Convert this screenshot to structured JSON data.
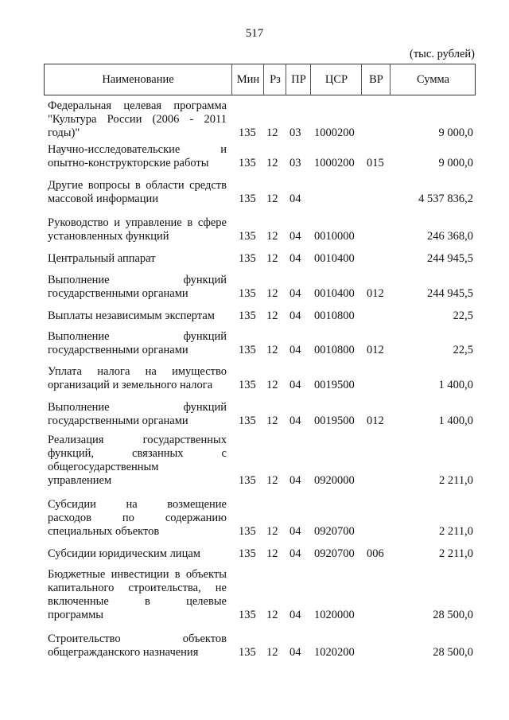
{
  "page_number": "517",
  "units": "(тыс. рублей)",
  "header": {
    "name": "Наименование",
    "min": "Мин",
    "rz": "Рз",
    "pr": "ПР",
    "csr": "ЦСР",
    "vr": "ВР",
    "sum": "Сумма"
  },
  "rows": [
    {
      "name_lines": [
        "Федеральная целевая программа",
        "\"Культура России (2006 - 2011",
        "годы)\""
      ],
      "min": "135",
      "rz": "12",
      "pr": "03",
      "csr": "1000200",
      "vr": "",
      "sum": "9 000,0"
    },
    {
      "name_lines": [
        "Научно-исследовательские и",
        "опытно-конструкторские работы"
      ],
      "min": "135",
      "rz": "12",
      "pr": "03",
      "csr": "1000200",
      "vr": "015",
      "sum": "9 000,0"
    },
    {
      "name_lines": [
        "Другие вопросы в области средств",
        "массовой информации"
      ],
      "min": "135",
      "rz": "12",
      "pr": "04",
      "csr": "",
      "vr": "",
      "sum": "4 537 836,2"
    },
    {
      "name_lines": [
        "Руководство и управление в сфере",
        "установленных функций"
      ],
      "min": "135",
      "rz": "12",
      "pr": "04",
      "csr": "0010000",
      "vr": "",
      "sum": "246 368,0"
    },
    {
      "name_lines": [
        "Центральный аппарат"
      ],
      "min": "135",
      "rz": "12",
      "pr": "04",
      "csr": "0010400",
      "vr": "",
      "sum": "244 945,5"
    },
    {
      "name_lines": [
        "Выполнение функций",
        "государственными органами"
      ],
      "min": "135",
      "rz": "12",
      "pr": "04",
      "csr": "0010400",
      "vr": "012",
      "sum": "244 945,5"
    },
    {
      "name_lines": [
        "Выплаты независимым экспертам"
      ],
      "min": "135",
      "rz": "12",
      "pr": "04",
      "csr": "0010800",
      "vr": "",
      "sum": "22,5"
    },
    {
      "name_lines": [
        "Выполнение функций",
        "государственными органами"
      ],
      "min": "135",
      "rz": "12",
      "pr": "04",
      "csr": "0010800",
      "vr": "012",
      "sum": "22,5"
    },
    {
      "name_lines": [
        "Уплата налога на имущество",
        "организаций и земельного налога"
      ],
      "min": "135",
      "rz": "12",
      "pr": "04",
      "csr": "0019500",
      "vr": "",
      "sum": "1 400,0"
    },
    {
      "name_lines": [
        "Выполнение функций",
        "государственными органами"
      ],
      "min": "135",
      "rz": "12",
      "pr": "04",
      "csr": "0019500",
      "vr": "012",
      "sum": "1 400,0"
    },
    {
      "name_lines": [
        "Реализация государственных",
        "функций, связанных с",
        "общегосударственным",
        "управлением"
      ],
      "min": "135",
      "rz": "12",
      "pr": "04",
      "csr": "0920000",
      "vr": "",
      "sum": "2 211,0"
    },
    {
      "name_lines": [
        "Субсидии на возмещение",
        "расходов по содержанию",
        "специальных объектов"
      ],
      "min": "135",
      "rz": "12",
      "pr": "04",
      "csr": "0920700",
      "vr": "",
      "sum": "2 211,0"
    },
    {
      "name_lines": [
        "Субсидии юридическим лицам"
      ],
      "min": "135",
      "rz": "12",
      "pr": "04",
      "csr": "0920700",
      "vr": "006",
      "sum": "2 211,0"
    },
    {
      "name_lines": [
        "Бюджетные инвестиции в объекты",
        "капитального строительства, не",
        "включенные в целевые",
        "программы"
      ],
      "min": "135",
      "rz": "12",
      "pr": "04",
      "csr": "1020000",
      "vr": "",
      "sum": "28 500,0"
    },
    {
      "name_lines": [
        "Строительство объектов",
        "общегражданского назначения"
      ],
      "min": "135",
      "rz": "12",
      "pr": "04",
      "csr": "1020200",
      "vr": "",
      "sum": "28 500,0"
    }
  ]
}
